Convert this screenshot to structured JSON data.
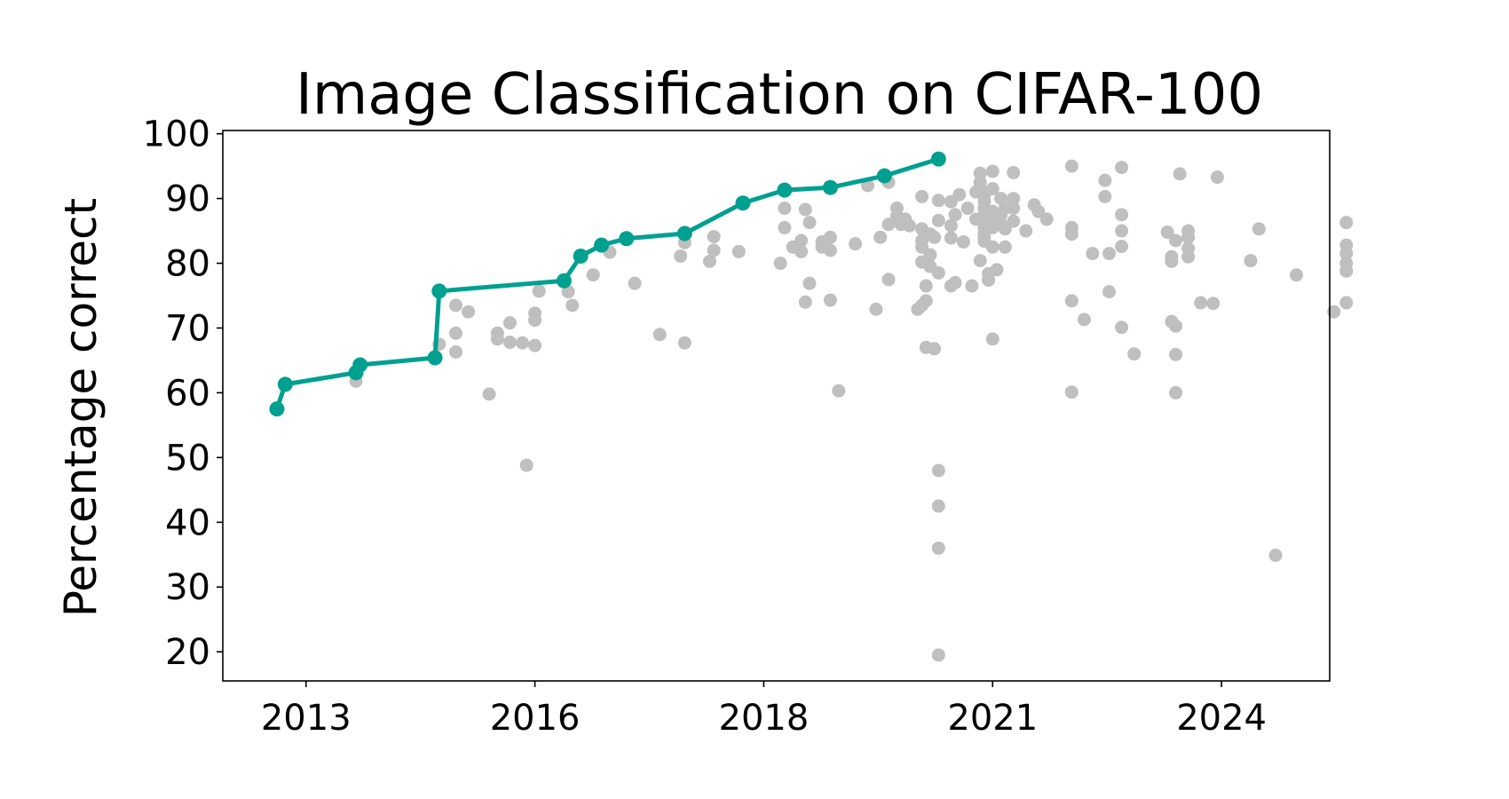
{
  "chart_data": {
    "type": "scatter",
    "title": "Image Classification on CIFAR-100",
    "xlabel": "",
    "ylabel": "Percentage correct",
    "xlim": [
      2012.1,
      2025.4
    ],
    "ylim": [
      15.5,
      100.5
    ],
    "x_ticks": [
      {
        "value": 2013.1,
        "label": "2013"
      },
      {
        "value": 2015.85,
        "label": "2016"
      },
      {
        "value": 2018.6,
        "label": "2018"
      },
      {
        "value": 2021.35,
        "label": "2021"
      },
      {
        "value": 2024.1,
        "label": "2024"
      }
    ],
    "y_ticks": [
      20,
      30,
      40,
      50,
      60,
      70,
      80,
      90,
      100
    ],
    "grid": false,
    "legend": "none",
    "colors": {
      "frontier": "#00a091",
      "other": "#bfbfbf"
    },
    "series": [
      {
        "role": "other",
        "points": [
          [
            2014.7,
            67.5
          ],
          [
            2014.9,
            73.5
          ],
          [
            2014.9,
            69.2
          ],
          [
            2014.9,
            66.3
          ],
          [
            2015.05,
            72.5
          ],
          [
            2015.3,
            59.8
          ],
          [
            2015.4,
            69.2
          ],
          [
            2015.4,
            68.3
          ],
          [
            2015.55,
            67.8
          ],
          [
            2015.55,
            70.8
          ],
          [
            2015.7,
            67.7
          ],
          [
            2015.75,
            48.8
          ],
          [
            2015.85,
            71.2
          ],
          [
            2015.85,
            72.3
          ],
          [
            2015.85,
            67.3
          ],
          [
            2015.9,
            75.7
          ],
          [
            2016.25,
            75.6
          ],
          [
            2016.3,
            73.5
          ],
          [
            2016.55,
            78.2
          ],
          [
            2016.75,
            81.7
          ],
          [
            2017.05,
            76.9
          ],
          [
            2017.35,
            69.0
          ],
          [
            2017.6,
            81.1
          ],
          [
            2017.65,
            83.2
          ],
          [
            2017.65,
            67.7
          ],
          [
            2017.95,
            80.3
          ],
          [
            2018.0,
            82.0
          ],
          [
            2018.0,
            84.1
          ],
          [
            2018.3,
            81.8
          ],
          [
            2018.8,
            80.0
          ],
          [
            2018.85,
            88.5
          ],
          [
            2018.85,
            85.5
          ],
          [
            2018.95,
            82.5
          ],
          [
            2019.05,
            83.5
          ],
          [
            2019.05,
            81.8
          ],
          [
            2019.1,
            88.3
          ],
          [
            2019.1,
            74.0
          ],
          [
            2019.15,
            86.3
          ],
          [
            2019.15,
            76.9
          ],
          [
            2019.3,
            82.5
          ],
          [
            2019.3,
            83.3
          ],
          [
            2019.4,
            84.0
          ],
          [
            2019.4,
            82.0
          ],
          [
            2019.4,
            74.3
          ],
          [
            2019.5,
            60.3
          ],
          [
            2019.7,
            83.0
          ],
          [
            2019.85,
            92.0
          ],
          [
            2019.95,
            72.9
          ],
          [
            2020.0,
            84.0
          ],
          [
            2020.1,
            86.0
          ],
          [
            2020.1,
            77.5
          ],
          [
            2020.1,
            92.5
          ],
          [
            2020.2,
            88.5
          ],
          [
            2020.2,
            87.3
          ],
          [
            2020.25,
            86.0
          ],
          [
            2020.3,
            86.8
          ],
          [
            2020.35,
            85.8
          ],
          [
            2020.45,
            72.9
          ],
          [
            2020.5,
            73.5
          ],
          [
            2020.5,
            80.2
          ],
          [
            2020.5,
            82.5
          ],
          [
            2020.5,
            83.5
          ],
          [
            2020.5,
            85.3
          ],
          [
            2020.5,
            90.3
          ],
          [
            2020.55,
            67.0
          ],
          [
            2020.55,
            74.2
          ],
          [
            2020.55,
            76.5
          ],
          [
            2020.6,
            84.5
          ],
          [
            2020.6,
            81.3
          ],
          [
            2020.6,
            79.5
          ],
          [
            2020.65,
            84.0
          ],
          [
            2020.65,
            66.8
          ],
          [
            2020.7,
            89.7
          ],
          [
            2020.7,
            86.6
          ],
          [
            2020.7,
            78.5
          ],
          [
            2020.7,
            48.0
          ],
          [
            2020.7,
            42.5
          ],
          [
            2020.7,
            36.0
          ],
          [
            2020.7,
            19.5
          ],
          [
            2020.85,
            76.5
          ],
          [
            2020.85,
            89.5
          ],
          [
            2020.85,
            83.9
          ],
          [
            2020.85,
            85.8
          ],
          [
            2020.9,
            77.0
          ],
          [
            2020.9,
            87.5
          ],
          [
            2020.95,
            90.6
          ],
          [
            2021.0,
            83.3
          ],
          [
            2021.05,
            88.5
          ],
          [
            2021.1,
            76.5
          ],
          [
            2021.15,
            86.8
          ],
          [
            2021.15,
            91.0
          ],
          [
            2021.2,
            80.4
          ],
          [
            2021.2,
            93.9
          ],
          [
            2021.2,
            92.5
          ],
          [
            2021.2,
            91.5
          ],
          [
            2021.25,
            90.5
          ],
          [
            2021.25,
            89.5
          ],
          [
            2021.25,
            88.5
          ],
          [
            2021.25,
            87.5
          ],
          [
            2021.25,
            86.5
          ],
          [
            2021.25,
            85.5
          ],
          [
            2021.25,
            84.6
          ],
          [
            2021.25,
            84.0
          ],
          [
            2021.25,
            83.4
          ],
          [
            2021.3,
            78.4
          ],
          [
            2021.3,
            77.4
          ],
          [
            2021.35,
            94.2
          ],
          [
            2021.35,
            91.5
          ],
          [
            2021.35,
            88.0
          ],
          [
            2021.35,
            86.5
          ],
          [
            2021.35,
            85.5
          ],
          [
            2021.35,
            82.5
          ],
          [
            2021.35,
            68.3
          ],
          [
            2021.4,
            79.0
          ],
          [
            2021.45,
            90.0
          ],
          [
            2021.45,
            87.5
          ],
          [
            2021.45,
            86.0
          ],
          [
            2021.5,
            88.5
          ],
          [
            2021.5,
            85.3
          ],
          [
            2021.5,
            82.5
          ],
          [
            2021.6,
            94.0
          ],
          [
            2021.6,
            90.0
          ],
          [
            2021.6,
            88.5
          ],
          [
            2021.6,
            86.5
          ],
          [
            2021.75,
            85.0
          ],
          [
            2021.85,
            89.0
          ],
          [
            2021.9,
            88.0
          ],
          [
            2022.0,
            86.8
          ],
          [
            2022.3,
            95.0
          ],
          [
            2022.3,
            85.5
          ],
          [
            2022.3,
            84.5
          ],
          [
            2022.3,
            74.2
          ],
          [
            2022.3,
            60.1
          ],
          [
            2022.45,
            71.3
          ],
          [
            2022.55,
            81.5
          ],
          [
            2022.7,
            92.8
          ],
          [
            2022.7,
            90.3
          ],
          [
            2022.75,
            81.5
          ],
          [
            2022.75,
            75.6
          ],
          [
            2022.9,
            94.8
          ],
          [
            2022.9,
            87.5
          ],
          [
            2022.9,
            85.0
          ],
          [
            2022.9,
            82.6
          ],
          [
            2022.9,
            70.1
          ],
          [
            2023.05,
            66.0
          ],
          [
            2023.45,
            84.8
          ],
          [
            2023.5,
            81.0
          ],
          [
            2023.5,
            80.3
          ],
          [
            2023.5,
            71.0
          ],
          [
            2023.55,
            83.5
          ],
          [
            2023.55,
            70.3
          ],
          [
            2023.55,
            65.9
          ],
          [
            2023.55,
            60.0
          ],
          [
            2023.6,
            93.8
          ],
          [
            2023.7,
            85.0
          ],
          [
            2023.7,
            84.0
          ],
          [
            2023.7,
            82.3
          ],
          [
            2023.7,
            81.0
          ],
          [
            2023.85,
            73.9
          ],
          [
            2024.05,
            93.3
          ],
          [
            2024.0,
            73.8
          ],
          [
            2024.45,
            80.4
          ],
          [
            2024.55,
            85.3
          ],
          [
            2024.75,
            34.9
          ],
          [
            2025.0,
            78.2
          ],
          [
            2025.45,
            72.5
          ],
          [
            2025.6,
            86.3
          ],
          [
            2025.6,
            82.8
          ],
          [
            2025.6,
            81.5
          ],
          [
            2025.6,
            80.0
          ],
          [
            2025.6,
            78.8
          ],
          [
            2025.6,
            73.9
          ],
          [
            2013.7,
            61.8
          ]
        ]
      },
      {
        "role": "frontier",
        "points": [
          [
            2012.75,
            57.5
          ],
          [
            2012.85,
            61.3
          ],
          [
            2013.7,
            63.1
          ],
          [
            2013.75,
            64.3
          ],
          [
            2014.65,
            65.4
          ],
          [
            2014.7,
            75.7
          ],
          [
            2016.2,
            77.3
          ],
          [
            2016.4,
            81.1
          ],
          [
            2016.65,
            82.8
          ],
          [
            2016.95,
            83.8
          ],
          [
            2017.65,
            84.6
          ],
          [
            2018.35,
            89.3
          ],
          [
            2018.85,
            91.3
          ],
          [
            2019.4,
            91.7
          ],
          [
            2020.05,
            93.5
          ],
          [
            2020.7,
            96.1
          ]
        ]
      }
    ]
  }
}
